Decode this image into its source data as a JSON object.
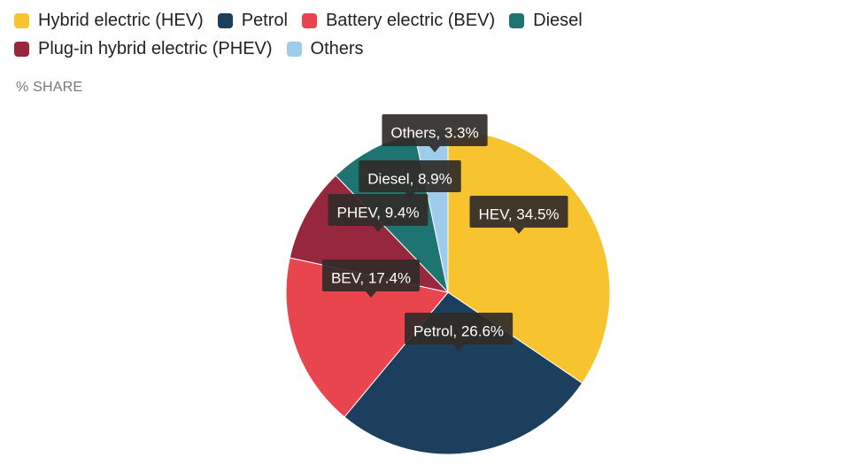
{
  "chart_data": {
    "type": "pie",
    "subtitle": "% SHARE",
    "series": [
      {
        "name": "Hybrid electric (HEV)",
        "label": "HEV, 34.5%",
        "value": 34.5,
        "color": "#F7C32E"
      },
      {
        "name": "Petrol",
        "label": "Petrol, 26.6%",
        "value": 26.6,
        "color": "#1C3F5E"
      },
      {
        "name": "Battery electric (BEV)",
        "label": "BEV, 17.4%",
        "value": 17.4,
        "color": "#E8454F"
      },
      {
        "name": "Plug-in hybrid electric (PHEV)",
        "label": "PHEV, 9.4%",
        "value": 9.4,
        "color": "#97273D"
      },
      {
        "name": "Diesel",
        "label": "Diesel, 8.9%",
        "value": 8.9,
        "color": "#1E7471"
      },
      {
        "name": "Others",
        "label": "Others, 3.3%",
        "value": 3.3,
        "color": "#9FCCEB"
      }
    ],
    "legend_order": [
      "Hybrid electric (HEV)",
      "Petrol",
      "Battery electric (BEV)",
      "Diesel",
      "Plug-in hybrid electric (PHEV)",
      "Others"
    ],
    "legend_position": "top-left",
    "start_angle": "12 o'clock, clockwise"
  }
}
